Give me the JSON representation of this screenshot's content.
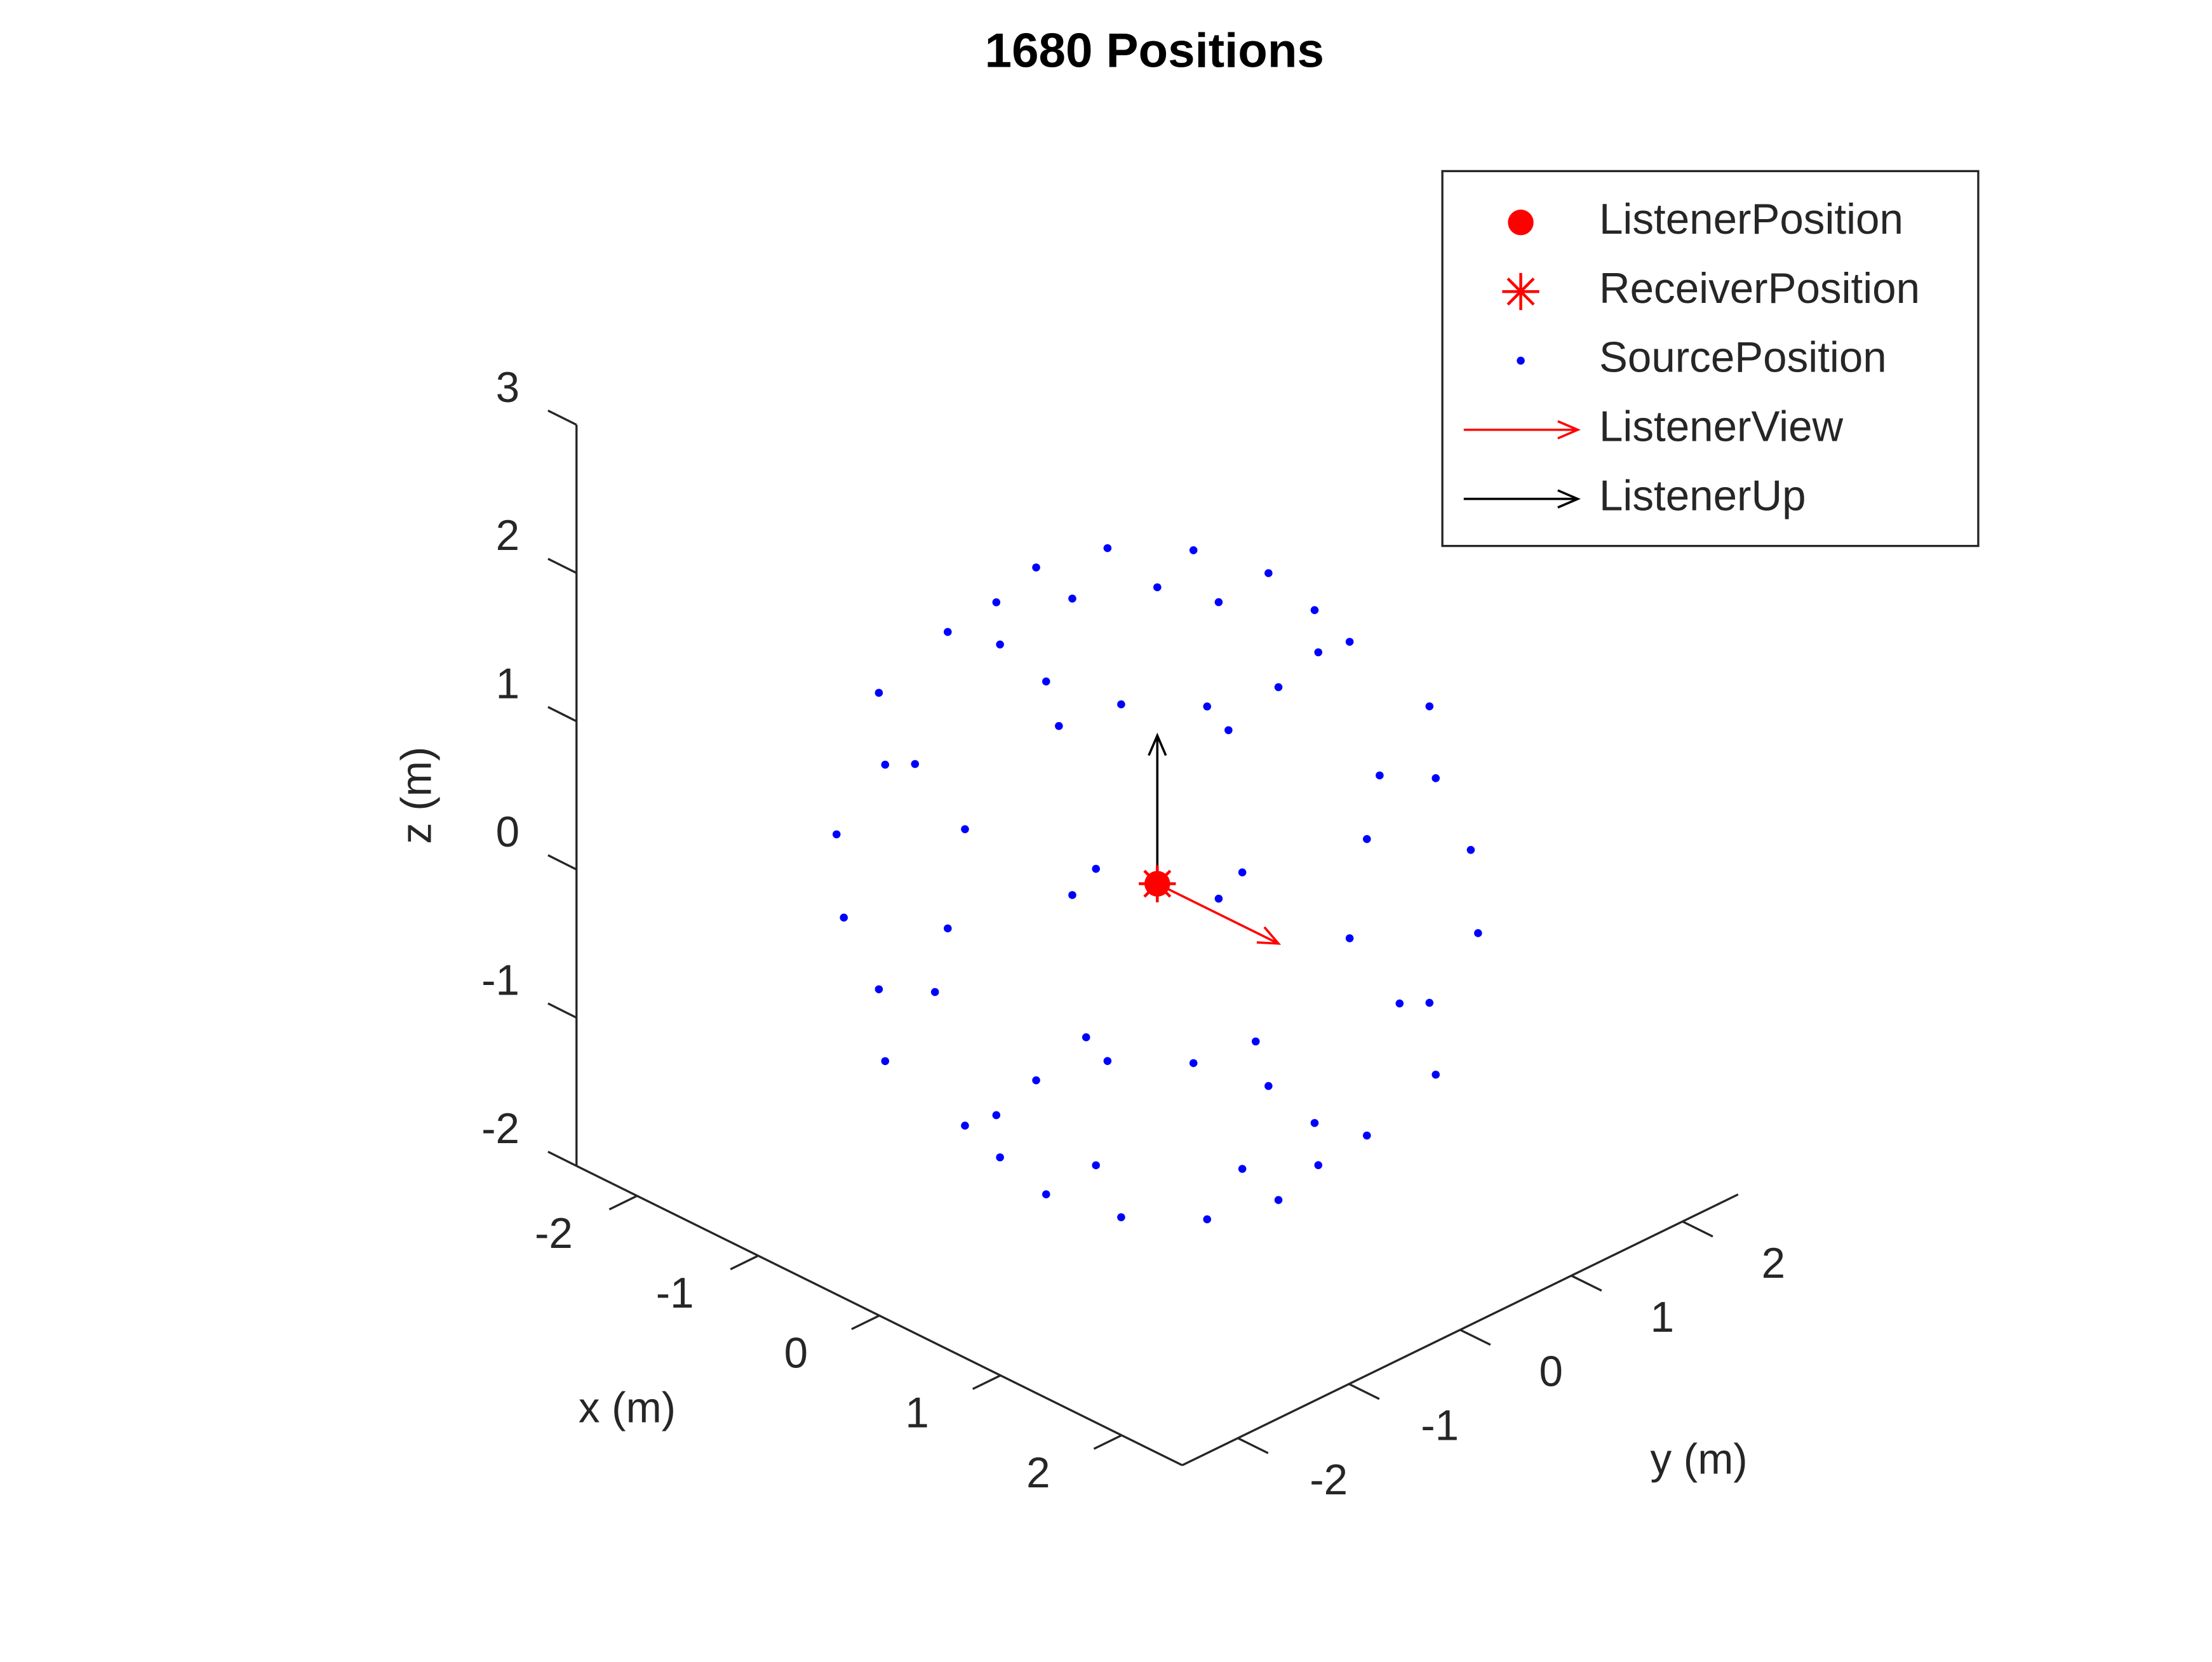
{
  "chart_data": {
    "type": "scatter3d",
    "title": "1680 Positions",
    "xlabel": "x (m)",
    "ylabel": "y (m)",
    "zlabel": "z (m)",
    "xlim": [
      -2.5,
      2.5
    ],
    "ylim": [
      -2.5,
      2.5
    ],
    "zlim": [
      -2,
      3
    ],
    "xticks": [
      -2,
      -1,
      0,
      1,
      2
    ],
    "yticks": [
      -2,
      -1,
      0,
      1,
      2
    ],
    "zticks": [
      -2,
      -1,
      0,
      1,
      2,
      3
    ],
    "legend": "upper right",
    "series": [
      {
        "name": "ListenerPosition",
        "color": "#ff0000",
        "marker": "circle",
        "x": [
          0
        ],
        "y": [
          0
        ],
        "z": [
          0
        ]
      },
      {
        "name": "ReceiverPosition",
        "color": "#ff0000",
        "marker": "asterisk",
        "x": [
          0
        ],
        "y": [
          0
        ],
        "z": [
          0
        ]
      },
      {
        "name": "SourcePosition",
        "color": "#0000ff",
        "marker": "dot",
        "x": [
          1,
          0.87,
          0.5,
          0,
          -0.5,
          -0.87,
          -1,
          -0.87,
          -0.5,
          0,
          0.5,
          0.87,
          1.73,
          1.5,
          0.87,
          0,
          -0.87,
          -1.5,
          -1.73,
          -1.5,
          -0.87,
          0,
          0.87,
          1.5,
          2,
          1.73,
          1,
          0,
          -1,
          -1.73,
          -2,
          -1.73,
          -1,
          0,
          1,
          1.73,
          1.73,
          1.5,
          0.87,
          0,
          -0.87,
          -1.5,
          -1.73,
          -1.5,
          -0.87,
          0,
          0.87,
          1.5,
          1,
          0.87,
          0.5,
          0,
          -0.5,
          -0.87,
          -1,
          -0.87,
          -0.5,
          0,
          0.5,
          0.87,
          0
        ],
        "y": [
          0,
          0.5,
          0.87,
          1,
          0.87,
          0.5,
          0,
          -0.5,
          -0.87,
          -1,
          -0.87,
          -0.5,
          0,
          0.87,
          1.5,
          1.73,
          1.5,
          0.87,
          0,
          -0.87,
          -1.5,
          -1.73,
          -1.5,
          -0.87,
          0,
          1,
          1.73,
          2,
          1.73,
          1,
          0,
          -1,
          -1.73,
          -2,
          -1.73,
          -1,
          0,
          0.87,
          1.5,
          1.73,
          1.5,
          0.87,
          0,
          -0.87,
          -1.5,
          -1.73,
          -1.5,
          -0.87,
          0,
          0.5,
          0.87,
          1,
          0.87,
          0.5,
          0,
          -0.5,
          -0.87,
          -1,
          -0.87,
          -0.5,
          0
        ],
        "z": [
          -1.73,
          -1.73,
          -1.73,
          -1.73,
          -1.73,
          -1.73,
          -1.73,
          -1.73,
          -1.73,
          -1.73,
          -1.73,
          -1.73,
          -1,
          -1,
          -1,
          -1,
          -1,
          -1,
          -1,
          -1,
          -1,
          -1,
          -1,
          -1,
          0,
          0,
          0,
          0,
          0,
          0,
          0,
          0,
          0,
          0,
          0,
          0,
          1,
          1,
          1,
          1,
          1,
          1,
          1,
          1,
          1,
          1,
          1,
          1,
          1.73,
          1.73,
          1.73,
          1.73,
          1.73,
          1.73,
          1.73,
          1.73,
          1.73,
          1.73,
          1.73,
          1.73,
          2
        ]
      },
      {
        "name": "ListenerView",
        "color": "#ff0000",
        "marker": "arrow",
        "x": [
          0
        ],
        "y": [
          0
        ],
        "z": [
          0
        ],
        "u": [
          1
        ],
        "v": [
          0
        ],
        "w": [
          0
        ]
      },
      {
        "name": "ListenerUp",
        "color": "#000000",
        "marker": "arrow",
        "x": [
          0
        ],
        "y": [
          0
        ],
        "z": [
          0
        ],
        "u": [
          0
        ],
        "v": [
          0
        ],
        "w": [
          1
        ]
      }
    ]
  }
}
